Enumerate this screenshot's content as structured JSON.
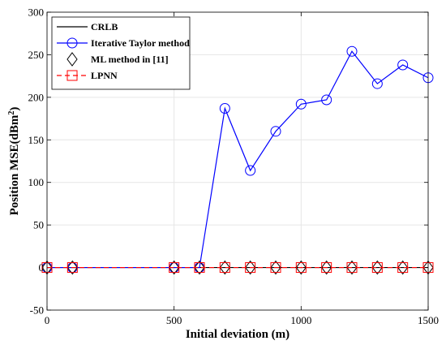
{
  "chart_data": {
    "type": "line",
    "title": "",
    "xlabel": "Initial deviation (m)",
    "ylabel": "Position MSE(dBm",
    "ylabel_sup": "2",
    "ylabel_close": ")",
    "xlim": [
      0,
      1500
    ],
    "ylim": [
      -50,
      300
    ],
    "xticks": [
      0,
      500,
      1000,
      1500
    ],
    "yticks": [
      -50,
      0,
      50,
      100,
      150,
      200,
      250,
      300
    ],
    "grid": true,
    "legend_position": "top-left",
    "x": [
      0,
      100,
      500,
      600,
      700,
      800,
      900,
      1000,
      1100,
      1200,
      1300,
      1400,
      1500
    ],
    "series": [
      {
        "name": "CRLB",
        "color": "#000000",
        "line": "solid",
        "marker": "none",
        "values": [
          0,
          0,
          0,
          0,
          0,
          0,
          0,
          0,
          0,
          0,
          0,
          0,
          0
        ]
      },
      {
        "name": "Iterative Taylor method",
        "color": "#0000ff",
        "line": "solid",
        "marker": "circle",
        "values": [
          0,
          0,
          0,
          0,
          187,
          114,
          160,
          192,
          197,
          254,
          216,
          238,
          223
        ]
      },
      {
        "name": "ML method in [11]",
        "color": "#000000",
        "line": "none",
        "marker": "diamond",
        "values": [
          0,
          0,
          0,
          0,
          0,
          0,
          0,
          0,
          0,
          0,
          0,
          0,
          0
        ]
      },
      {
        "name": "LPNN",
        "color": "#ff0000",
        "line": "dashed",
        "marker": "square",
        "values": [
          0,
          0,
          0,
          0,
          0,
          0,
          0,
          0,
          0,
          0,
          0,
          0,
          0
        ]
      }
    ]
  }
}
